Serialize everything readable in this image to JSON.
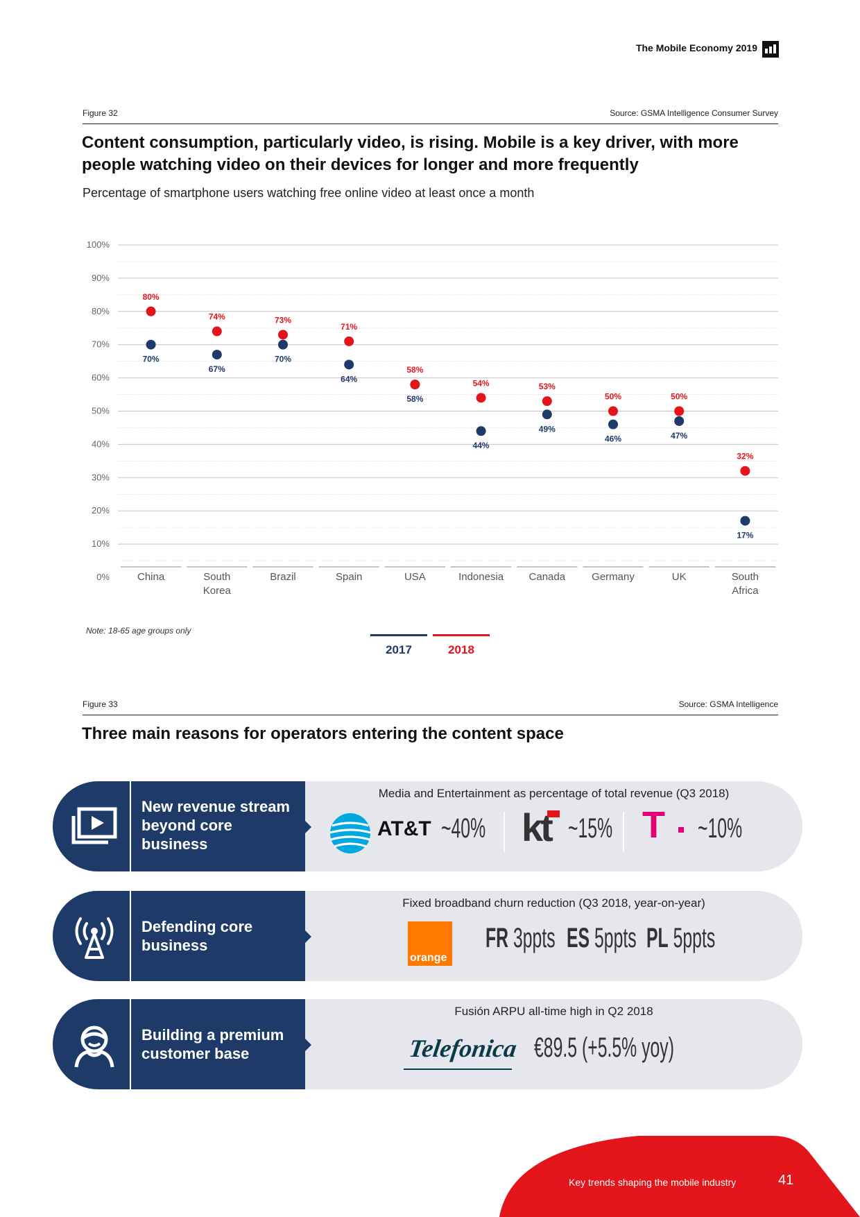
{
  "header": {
    "title": "The Mobile Economy 2019"
  },
  "figure32": {
    "label": "Figure 32",
    "source": "Source: GSMA Intelligence Consumer Survey",
    "title": "Content consumption, particularly video, is rising. Mobile is a key driver, with more people watching video on their devices for longer and more frequently",
    "subtitle": "Percentage of smartphone users watching free online video at least once a month",
    "note": "Note: 18-65 age groups only"
  },
  "chart_data": {
    "type": "scatter",
    "title": "Percentage of smartphone users watching free online video at least once a month",
    "categories": [
      "China",
      "South Korea",
      "Brazil",
      "Spain",
      "USA",
      "Indonesia",
      "Canada",
      "Germany",
      "UK",
      "South Africa"
    ],
    "category_lines": [
      [
        "China"
      ],
      [
        "South",
        "Korea"
      ],
      [
        "Brazil"
      ],
      [
        "Spain"
      ],
      [
        "USA"
      ],
      [
        "Indonesia"
      ],
      [
        "Canada"
      ],
      [
        "Germany"
      ],
      [
        "UK"
      ],
      [
        "South",
        "Africa"
      ]
    ],
    "series": [
      {
        "name": "2017",
        "color": "#1d3a69",
        "values": [
          70,
          67,
          70,
          64,
          58,
          44,
          49,
          46,
          47,
          17
        ],
        "labels": [
          "70%",
          "67%",
          "70%",
          "64%",
          "58%",
          "44%",
          "49%",
          "46%",
          "47%",
          "17%"
        ]
      },
      {
        "name": "2018",
        "color": "#e4141b",
        "values": [
          80,
          74,
          73,
          71,
          58,
          54,
          53,
          50,
          50,
          32
        ],
        "labels": [
          "80%",
          "74%",
          "73%",
          "71%",
          "58%",
          "54%",
          "53%",
          "50%",
          "50%",
          "32%"
        ]
      }
    ],
    "y_ticks": [
      "0%",
      "10%",
      "20%",
      "30%",
      "40%",
      "50%",
      "60%",
      "70%",
      "80%",
      "90%",
      "100%"
    ],
    "ylim": [
      0,
      100
    ],
    "legend": "bottom-center"
  },
  "figure33": {
    "label": "Figure 33",
    "source": "Source: GSMA Intelligence",
    "title": "Three main reasons for operators entering the content space",
    "reasons": [
      {
        "label": "New revenue stream beyond core business",
        "caption": "Media and Entertainment as percentage of total revenue (Q3 2018)",
        "items": [
          {
            "brand": "AT&T",
            "value": "~40%"
          },
          {
            "brand": "kt",
            "value": "~15%"
          },
          {
            "brand": "T",
            "value": "~10%"
          }
        ]
      },
      {
        "label": "Defending core business",
        "caption": "Fixed broadband churn reduction (Q3 2018, year-on-year)",
        "brand": "orange",
        "items": [
          {
            "code": "FR",
            "value": "3ppts"
          },
          {
            "code": "ES",
            "value": "5ppts"
          },
          {
            "code": "PL",
            "value": "5ppts"
          }
        ]
      },
      {
        "label": "Building a premium customer base",
        "caption": "Fusión ARPU all-time high in Q2 2018",
        "brand": "Telefonica",
        "value": "€89.5 (+5.5% yoy)"
      }
    ]
  },
  "footer": {
    "text": "Key trends shaping the mobile industry",
    "page": "41"
  },
  "colors": {
    "navy": "#1d3a69",
    "red": "#e4141b",
    "panel": "#e6e7ed",
    "magenta": "#e20074",
    "orange": "#ff7900",
    "att_blue": "#00a8e0"
  }
}
